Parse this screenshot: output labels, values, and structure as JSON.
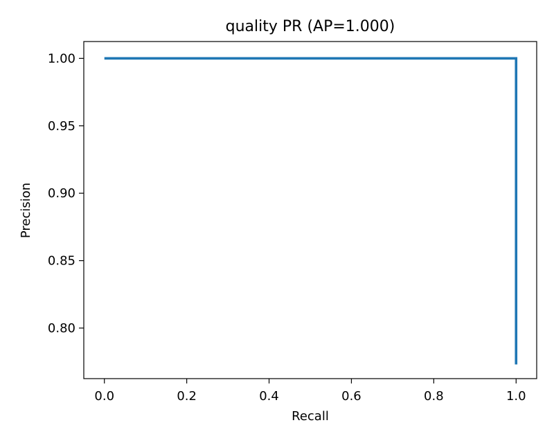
{
  "chart_data": {
    "type": "line",
    "title": "quality PR (AP=1.000)",
    "xlabel": "Recall",
    "ylabel": "Precision",
    "xlim": [
      -0.05,
      1.05
    ],
    "ylim": [
      0.7625,
      1.0125
    ],
    "grid": false,
    "x_ticks": [
      {
        "value": 0.0,
        "label": "0.0"
      },
      {
        "value": 0.2,
        "label": "0.2"
      },
      {
        "value": 0.4,
        "label": "0.4"
      },
      {
        "value": 0.6,
        "label": "0.6"
      },
      {
        "value": 0.8,
        "label": "0.8"
      },
      {
        "value": 1.0,
        "label": "1.0"
      }
    ],
    "y_ticks": [
      {
        "value": 0.8,
        "label": "0.80"
      },
      {
        "value": 0.85,
        "label": "0.85"
      },
      {
        "value": 0.9,
        "label": "0.90"
      },
      {
        "value": 0.95,
        "label": "0.95"
      },
      {
        "value": 1.0,
        "label": "1.00"
      }
    ],
    "series": [
      {
        "color": "#1f77b4",
        "x": [
          0.0,
          1.0,
          1.0
        ],
        "y": [
          1.0,
          1.0,
          0.773
        ]
      }
    ]
  }
}
